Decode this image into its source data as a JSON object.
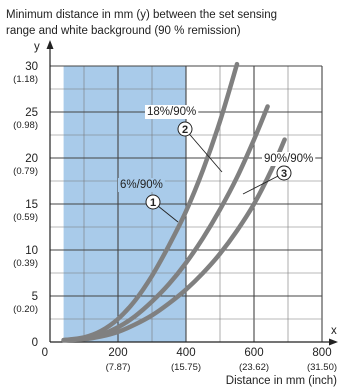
{
  "chart_data": {
    "type": "line",
    "title": "Minimum distance in mm (y) between the set sensing range and white background (90 % remission)",
    "title_lines": [
      "Minimum distance in mm (y) between the set sensing",
      "range and white background (90 % remission)"
    ],
    "xlabel": "Distance in mm (inch)",
    "ylabel": "y",
    "xlim": [
      0,
      800
    ],
    "ylim": [
      0,
      30
    ],
    "x_axis_letter": "x",
    "grid": true,
    "highlight_region": {
      "x": [
        40,
        400
      ],
      "color": "#a9cbea"
    },
    "x_ticks": [
      {
        "value": 0,
        "label": "0",
        "sub": ""
      },
      {
        "value": 200,
        "label": "200",
        "sub": "(7.87)"
      },
      {
        "value": 400,
        "label": "400",
        "sub": "(15.75)"
      },
      {
        "value": 600,
        "label": "600",
        "sub": "(23.62)"
      },
      {
        "value": 800,
        "label": "800",
        "sub": "(31.50)"
      }
    ],
    "y_ticks": [
      {
        "value": 0,
        "label": "0",
        "sub": ""
      },
      {
        "value": 5,
        "label": "5",
        "sub": "(0.20)"
      },
      {
        "value": 10,
        "label": "10",
        "sub": "(0.39)"
      },
      {
        "value": 15,
        "label": "15",
        "sub": "(0.59)"
      },
      {
        "value": 20,
        "label": "20",
        "sub": "(0.79)"
      },
      {
        "value": 25,
        "label": "25",
        "sub": "(0.98)"
      },
      {
        "value": 30,
        "label": "30",
        "sub": "(1.18)"
      }
    ],
    "series": [
      {
        "name": "6%/90%",
        "marker": "①",
        "x": [
          40,
          100,
          150,
          200,
          250,
          300,
          350,
          400,
          450,
          500,
          550
        ],
        "y": [
          0.2,
          0.5,
          1.2,
          2.5,
          4.5,
          7.2,
          10.5,
          14.2,
          18.7,
          24.0,
          30.2
        ]
      },
      {
        "name": "18%/90%",
        "marker": "②",
        "x": [
          40,
          100,
          150,
          200,
          250,
          300,
          350,
          400,
          450,
          500,
          550,
          600,
          640
        ],
        "y": [
          0.2,
          0.4,
          0.8,
          1.6,
          2.8,
          4.4,
          6.3,
          8.6,
          11.3,
          14.4,
          17.9,
          22.0,
          25.6
        ]
      },
      {
        "name": "90%/90%",
        "marker": "③",
        "x": [
          40,
          100,
          150,
          200,
          250,
          300,
          350,
          400,
          450,
          500,
          550,
          600,
          650,
          690
        ],
        "y": [
          0.2,
          0.3,
          0.6,
          1.1,
          1.9,
          2.9,
          4.2,
          5.7,
          7.5,
          9.6,
          12.1,
          15.0,
          18.6,
          22.0
        ]
      }
    ],
    "line_color": "#808080"
  }
}
